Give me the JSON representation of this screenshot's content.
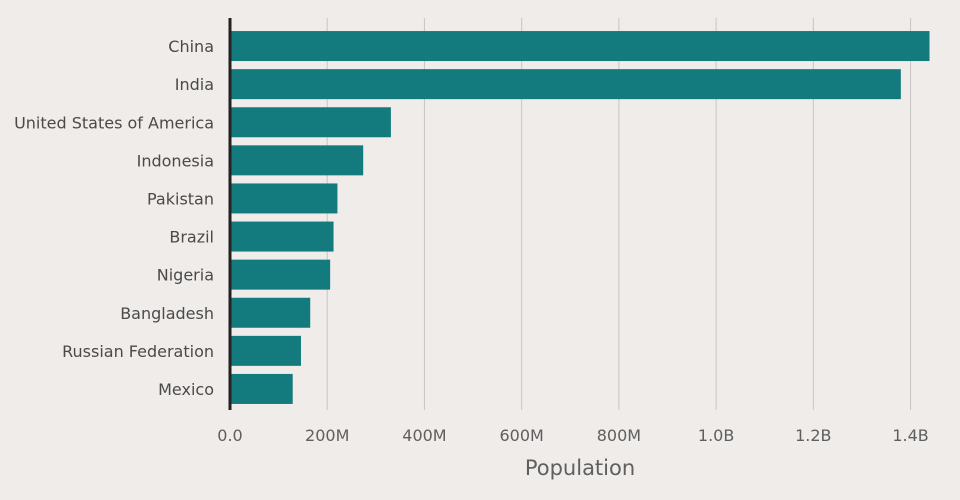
{
  "chart_data": {
    "type": "bar",
    "orientation": "horizontal",
    "categories": [
      "China",
      "India",
      "United States of America",
      "Indonesia",
      "Pakistan",
      "Brazil",
      "Nigeria",
      "Bangladesh",
      "Russian Federation",
      "Mexico"
    ],
    "values": [
      1439000000,
      1380000000,
      331000000,
      274000000,
      221000000,
      213000000,
      206000000,
      165000000,
      146000000,
      129000000
    ],
    "xlabel": "Population",
    "ylabel": "",
    "xlim": [
      0,
      1440000000
    ],
    "x_ticks": [
      0,
      200000000,
      400000000,
      600000000,
      800000000,
      1000000000,
      1200000000,
      1400000000
    ],
    "x_tick_labels": [
      "0.0",
      "200M",
      "400M",
      "600M",
      "800M",
      "1.0B",
      "1.2B",
      "1.4B"
    ],
    "grid": "vertical",
    "bar_color": "#137b7e",
    "grid_color": "#c8c6c4",
    "axis_color": "#222222",
    "background": "#efecea"
  }
}
